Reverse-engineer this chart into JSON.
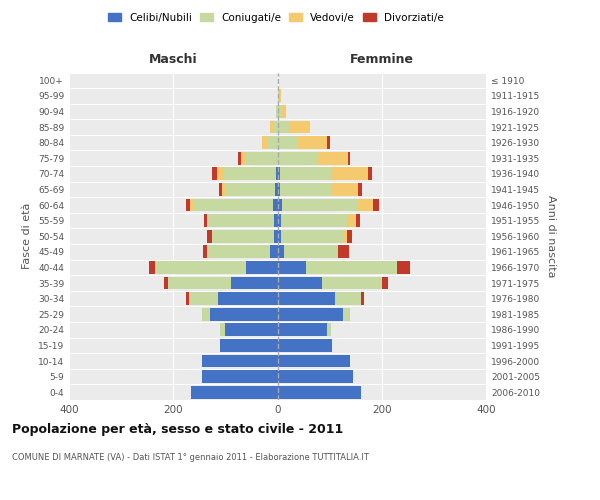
{
  "age_groups": [
    "0-4",
    "5-9",
    "10-14",
    "15-19",
    "20-24",
    "25-29",
    "30-34",
    "35-39",
    "40-44",
    "45-49",
    "50-54",
    "55-59",
    "60-64",
    "65-69",
    "70-74",
    "75-79",
    "80-84",
    "85-89",
    "90-94",
    "95-99",
    "100+"
  ],
  "birth_years": [
    "2006-2010",
    "2001-2005",
    "1996-2000",
    "1991-1995",
    "1986-1990",
    "1981-1985",
    "1976-1980",
    "1971-1975",
    "1966-1970",
    "1961-1965",
    "1956-1960",
    "1951-1955",
    "1946-1950",
    "1941-1945",
    "1936-1940",
    "1931-1935",
    "1926-1930",
    "1921-1925",
    "1916-1920",
    "1911-1915",
    "≤ 1910"
  ],
  "male": {
    "celibi": [
      165,
      145,
      145,
      110,
      100,
      130,
      115,
      90,
      60,
      15,
      6,
      6,
      8,
      4,
      2,
      0,
      0,
      0,
      0,
      0,
      0
    ],
    "coniugati": [
      0,
      0,
      0,
      0,
      10,
      15,
      55,
      120,
      175,
      120,
      120,
      130,
      155,
      95,
      100,
      60,
      20,
      8,
      2,
      0,
      0
    ],
    "vedovi": [
      0,
      0,
      0,
      0,
      0,
      0,
      0,
      0,
      0,
      0,
      0,
      0,
      5,
      8,
      15,
      10,
      10,
      6,
      0,
      0,
      0
    ],
    "divorziati": [
      0,
      0,
      0,
      0,
      0,
      0,
      5,
      8,
      12,
      8,
      10,
      5,
      8,
      5,
      8,
      5,
      0,
      0,
      0,
      0,
      0
    ]
  },
  "female": {
    "nubili": [
      160,
      145,
      140,
      105,
      95,
      125,
      110,
      85,
      55,
      12,
      6,
      6,
      8,
      5,
      4,
      0,
      0,
      0,
      0,
      0,
      0
    ],
    "coniugate": [
      0,
      0,
      0,
      0,
      8,
      15,
      50,
      115,
      175,
      105,
      120,
      130,
      145,
      100,
      100,
      75,
      40,
      22,
      8,
      3,
      0
    ],
    "vedove": [
      0,
      0,
      0,
      0,
      0,
      0,
      0,
      0,
      0,
      0,
      8,
      15,
      30,
      50,
      70,
      60,
      55,
      40,
      8,
      3,
      0
    ],
    "divorziate": [
      0,
      0,
      0,
      0,
      0,
      0,
      5,
      12,
      25,
      20,
      8,
      8,
      12,
      8,
      8,
      5,
      5,
      0,
      0,
      0,
      0
    ]
  },
  "colors": {
    "celibi": "#4472c4",
    "coniugati": "#c5d9a0",
    "vedovi": "#f5c96e",
    "divorziati": "#c0392b"
  },
  "legend_labels": [
    "Celibi/Nubili",
    "Coniugati/e",
    "Vedovi/e",
    "Divorziati/e"
  ],
  "title": "Popolazione per età, sesso e stato civile - 2011",
  "subtitle": "COMUNE DI MARNATE (VA) - Dati ISTAT 1° gennaio 2011 - Elaborazione TUTTITALIA.IT",
  "ylabel_left": "Fasce di età",
  "ylabel_right": "Anni di nascita",
  "xlabel_left": "Maschi",
  "xlabel_right": "Femmine",
  "xlim": 400,
  "bg_color": "#ffffff",
  "plot_bg": "#ebebeb"
}
